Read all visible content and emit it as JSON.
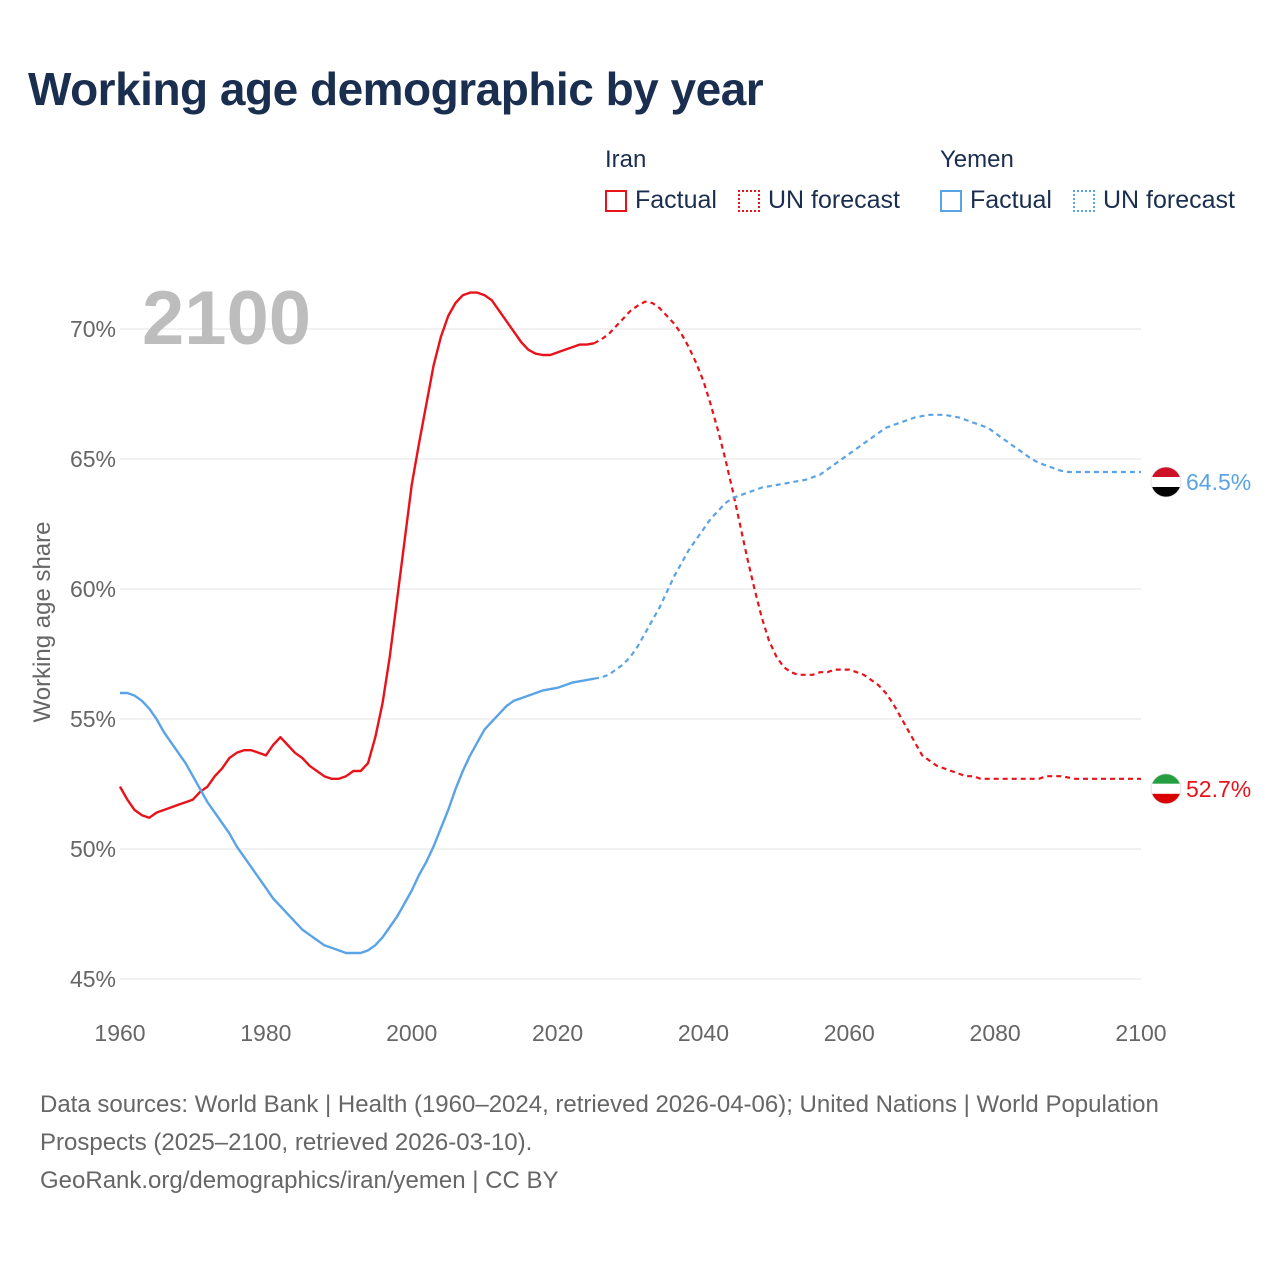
{
  "title": "Working age demographic by year",
  "legend": {
    "groups": [
      {
        "name": "Iran",
        "factual": "Factual",
        "forecast": "UN forecast",
        "color": "#e8131a"
      },
      {
        "name": "Yemen",
        "factual": "Factual",
        "forecast": "UN forecast",
        "color": "#5aa3e6"
      }
    ]
  },
  "year_label": "2100",
  "footer": {
    "line1": "Data sources: World Bank | Health (1960–2024, retrieved 2026-04-06); United Nations | World Population Prospects (2025–2100, retrieved 2026-03-10).",
    "line2": "GeoRank.org/demographics/iran/yemen | CC BY"
  },
  "chart_data": {
    "type": "line",
    "title": "Working age demographic by year",
    "xlabel": "",
    "ylabel": "Working age share",
    "xlim": [
      1960,
      2100
    ],
    "ylim": [
      45,
      72
    ],
    "x_ticks": [
      1960,
      1980,
      2000,
      2020,
      2040,
      2060,
      2080,
      2100
    ],
    "y_ticks": [
      45,
      50,
      55,
      60,
      65,
      70
    ],
    "y_tick_labels": [
      "45%",
      "50%",
      "55%",
      "60%",
      "65%",
      "70%"
    ],
    "factual_end_year": 2025,
    "series": [
      {
        "name": "Iran",
        "color": "#e8131a",
        "end_label": "52.7%",
        "points": [
          [
            1960,
            52.4
          ],
          [
            1961,
            51.9
          ],
          [
            1962,
            51.5
          ],
          [
            1963,
            51.3
          ],
          [
            1964,
            51.2
          ],
          [
            1965,
            51.4
          ],
          [
            1966,
            51.5
          ],
          [
            1967,
            51.6
          ],
          [
            1968,
            51.7
          ],
          [
            1969,
            51.8
          ],
          [
            1970,
            51.9
          ],
          [
            1971,
            52.2
          ],
          [
            1972,
            52.4
          ],
          [
            1973,
            52.8
          ],
          [
            1974,
            53.1
          ],
          [
            1975,
            53.5
          ],
          [
            1976,
            53.7
          ],
          [
            1977,
            53.8
          ],
          [
            1978,
            53.8
          ],
          [
            1979,
            53.7
          ],
          [
            1980,
            53.6
          ],
          [
            1981,
            54.0
          ],
          [
            1982,
            54.3
          ],
          [
            1983,
            54.0
          ],
          [
            1984,
            53.7
          ],
          [
            1985,
            53.5
          ],
          [
            1986,
            53.2
          ],
          [
            1987,
            53.0
          ],
          [
            1988,
            52.8
          ],
          [
            1989,
            52.7
          ],
          [
            1990,
            52.7
          ],
          [
            1991,
            52.8
          ],
          [
            1992,
            53.0
          ],
          [
            1993,
            53.0
          ],
          [
            1994,
            53.3
          ],
          [
            1995,
            54.3
          ],
          [
            1996,
            55.6
          ],
          [
            1997,
            57.4
          ],
          [
            1998,
            59.6
          ],
          [
            1999,
            61.8
          ],
          [
            2000,
            64.0
          ],
          [
            2001,
            65.6
          ],
          [
            2002,
            67.1
          ],
          [
            2003,
            68.6
          ],
          [
            2004,
            69.7
          ],
          [
            2005,
            70.5
          ],
          [
            2006,
            71.0
          ],
          [
            2007,
            71.3
          ],
          [
            2008,
            71.4
          ],
          [
            2009,
            71.4
          ],
          [
            2010,
            71.3
          ],
          [
            2011,
            71.1
          ],
          [
            2012,
            70.7
          ],
          [
            2013,
            70.3
          ],
          [
            2014,
            69.9
          ],
          [
            2015,
            69.5
          ],
          [
            2016,
            69.2
          ],
          [
            2017,
            69.05
          ],
          [
            2018,
            69.0
          ],
          [
            2019,
            69.0
          ],
          [
            2020,
            69.1
          ],
          [
            2021,
            69.2
          ],
          [
            2022,
            69.3
          ],
          [
            2023,
            69.4
          ],
          [
            2024,
            69.4
          ],
          [
            2025,
            69.45
          ],
          [
            2026,
            69.6
          ],
          [
            2027,
            69.8
          ],
          [
            2028,
            70.1
          ],
          [
            2029,
            70.4
          ],
          [
            2030,
            70.7
          ],
          [
            2031,
            70.9
          ],
          [
            2032,
            71.05
          ],
          [
            2033,
            71.0
          ],
          [
            2034,
            70.8
          ],
          [
            2035,
            70.5
          ],
          [
            2036,
            70.2
          ],
          [
            2037,
            69.8
          ],
          [
            2038,
            69.3
          ],
          [
            2039,
            68.7
          ],
          [
            2040,
            68.0
          ],
          [
            2041,
            67.1
          ],
          [
            2042,
            66.1
          ],
          [
            2043,
            65.0
          ],
          [
            2044,
            63.8
          ],
          [
            2045,
            62.5
          ],
          [
            2046,
            61.2
          ],
          [
            2047,
            60.0
          ],
          [
            2048,
            58.9
          ],
          [
            2049,
            58.0
          ],
          [
            2050,
            57.4
          ],
          [
            2051,
            57.0
          ],
          [
            2052,
            56.8
          ],
          [
            2053,
            56.7
          ],
          [
            2054,
            56.7
          ],
          [
            2055,
            56.7
          ],
          [
            2056,
            56.8
          ],
          [
            2057,
            56.8
          ],
          [
            2058,
            56.9
          ],
          [
            2059,
            56.9
          ],
          [
            2060,
            56.9
          ],
          [
            2061,
            56.8
          ],
          [
            2062,
            56.7
          ],
          [
            2063,
            56.5
          ],
          [
            2064,
            56.3
          ],
          [
            2065,
            56.0
          ],
          [
            2066,
            55.6
          ],
          [
            2067,
            55.1
          ],
          [
            2068,
            54.6
          ],
          [
            2069,
            54.1
          ],
          [
            2070,
            53.6
          ],
          [
            2071,
            53.4
          ],
          [
            2072,
            53.2
          ],
          [
            2073,
            53.1
          ],
          [
            2074,
            53.0
          ],
          [
            2075,
            52.9
          ],
          [
            2076,
            52.8
          ],
          [
            2077,
            52.8
          ],
          [
            2078,
            52.7
          ],
          [
            2079,
            52.7
          ],
          [
            2080,
            52.7
          ],
          [
            2081,
            52.7
          ],
          [
            2082,
            52.7
          ],
          [
            2083,
            52.7
          ],
          [
            2084,
            52.7
          ],
          [
            2085,
            52.7
          ],
          [
            2086,
            52.7
          ],
          [
            2087,
            52.8
          ],
          [
            2088,
            52.8
          ],
          [
            2089,
            52.8
          ],
          [
            2090,
            52.75
          ],
          [
            2091,
            52.7
          ],
          [
            2092,
            52.7
          ],
          [
            2093,
            52.7
          ],
          [
            2094,
            52.7
          ],
          [
            2095,
            52.7
          ],
          [
            2096,
            52.7
          ],
          [
            2097,
            52.7
          ],
          [
            2098,
            52.7
          ],
          [
            2099,
            52.7
          ],
          [
            2100,
            52.7
          ]
        ]
      },
      {
        "name": "Yemen",
        "color": "#5aa3e6",
        "end_label": "64.5%",
        "points": [
          [
            1960,
            56.0
          ],
          [
            1961,
            56.0
          ],
          [
            1962,
            55.9
          ],
          [
            1963,
            55.7
          ],
          [
            1964,
            55.4
          ],
          [
            1965,
            55.0
          ],
          [
            1966,
            54.5
          ],
          [
            1967,
            54.1
          ],
          [
            1968,
            53.7
          ],
          [
            1969,
            53.3
          ],
          [
            1970,
            52.8
          ],
          [
            1971,
            52.3
          ],
          [
            1972,
            51.8
          ],
          [
            1973,
            51.4
          ],
          [
            1974,
            51.0
          ],
          [
            1975,
            50.6
          ],
          [
            1976,
            50.1
          ],
          [
            1977,
            49.7
          ],
          [
            1978,
            49.3
          ],
          [
            1979,
            48.9
          ],
          [
            1980,
            48.5
          ],
          [
            1981,
            48.1
          ],
          [
            1982,
            47.8
          ],
          [
            1983,
            47.5
          ],
          [
            1984,
            47.2
          ],
          [
            1985,
            46.9
          ],
          [
            1986,
            46.7
          ],
          [
            1987,
            46.5
          ],
          [
            1988,
            46.3
          ],
          [
            1989,
            46.2
          ],
          [
            1990,
            46.1
          ],
          [
            1991,
            46.0
          ],
          [
            1992,
            46.0
          ],
          [
            1993,
            46.0
          ],
          [
            1994,
            46.1
          ],
          [
            1995,
            46.3
          ],
          [
            1996,
            46.6
          ],
          [
            1997,
            47.0
          ],
          [
            1998,
            47.4
          ],
          [
            1999,
            47.9
          ],
          [
            2000,
            48.4
          ],
          [
            2001,
            49.0
          ],
          [
            2002,
            49.5
          ],
          [
            2003,
            50.1
          ],
          [
            2004,
            50.8
          ],
          [
            2005,
            51.5
          ],
          [
            2006,
            52.3
          ],
          [
            2007,
            53.0
          ],
          [
            2008,
            53.6
          ],
          [
            2009,
            54.1
          ],
          [
            2010,
            54.6
          ],
          [
            2011,
            54.9
          ],
          [
            2012,
            55.2
          ],
          [
            2013,
            55.5
          ],
          [
            2014,
            55.7
          ],
          [
            2015,
            55.8
          ],
          [
            2016,
            55.9
          ],
          [
            2017,
            56.0
          ],
          [
            2018,
            56.1
          ],
          [
            2019,
            56.15
          ],
          [
            2020,
            56.2
          ],
          [
            2021,
            56.3
          ],
          [
            2022,
            56.4
          ],
          [
            2023,
            56.45
          ],
          [
            2024,
            56.5
          ],
          [
            2025,
            56.55
          ],
          [
            2026,
            56.6
          ],
          [
            2027,
            56.7
          ],
          [
            2028,
            56.9
          ],
          [
            2029,
            57.1
          ],
          [
            2030,
            57.4
          ],
          [
            2031,
            57.8
          ],
          [
            2032,
            58.3
          ],
          [
            2033,
            58.8
          ],
          [
            2034,
            59.3
          ],
          [
            2035,
            59.9
          ],
          [
            2036,
            60.5
          ],
          [
            2037,
            61.0
          ],
          [
            2038,
            61.5
          ],
          [
            2039,
            61.9
          ],
          [
            2040,
            62.3
          ],
          [
            2041,
            62.7
          ],
          [
            2042,
            63.0
          ],
          [
            2043,
            63.3
          ],
          [
            2044,
            63.5
          ],
          [
            2045,
            63.6
          ],
          [
            2046,
            63.7
          ],
          [
            2047,
            63.8
          ],
          [
            2048,
            63.9
          ],
          [
            2049,
            63.95
          ],
          [
            2050,
            64.0
          ],
          [
            2051,
            64.05
          ],
          [
            2052,
            64.1
          ],
          [
            2053,
            64.15
          ],
          [
            2054,
            64.2
          ],
          [
            2055,
            64.3
          ],
          [
            2056,
            64.4
          ],
          [
            2057,
            64.6
          ],
          [
            2058,
            64.8
          ],
          [
            2059,
            65.0
          ],
          [
            2060,
            65.2
          ],
          [
            2061,
            65.4
          ],
          [
            2062,
            65.6
          ],
          [
            2063,
            65.8
          ],
          [
            2064,
            66.0
          ],
          [
            2065,
            66.2
          ],
          [
            2066,
            66.3
          ],
          [
            2067,
            66.4
          ],
          [
            2068,
            66.5
          ],
          [
            2069,
            66.6
          ],
          [
            2070,
            66.65
          ],
          [
            2071,
            66.7
          ],
          [
            2072,
            66.7
          ],
          [
            2073,
            66.7
          ],
          [
            2074,
            66.65
          ],
          [
            2075,
            66.6
          ],
          [
            2076,
            66.5
          ],
          [
            2077,
            66.4
          ],
          [
            2078,
            66.3
          ],
          [
            2079,
            66.2
          ],
          [
            2080,
            66.0
          ],
          [
            2081,
            65.8
          ],
          [
            2082,
            65.6
          ],
          [
            2083,
            65.4
          ],
          [
            2084,
            65.2
          ],
          [
            2085,
            65.0
          ],
          [
            2086,
            64.85
          ],
          [
            2087,
            64.75
          ],
          [
            2088,
            64.65
          ],
          [
            2089,
            64.55
          ],
          [
            2090,
            64.5
          ],
          [
            2091,
            64.5
          ],
          [
            2092,
            64.5
          ],
          [
            2093,
            64.5
          ],
          [
            2094,
            64.5
          ],
          [
            2095,
            64.5
          ],
          [
            2096,
            64.5
          ],
          [
            2097,
            64.5
          ],
          [
            2098,
            64.5
          ],
          [
            2099,
            64.5
          ],
          [
            2100,
            64.5
          ]
        ]
      }
    ]
  }
}
